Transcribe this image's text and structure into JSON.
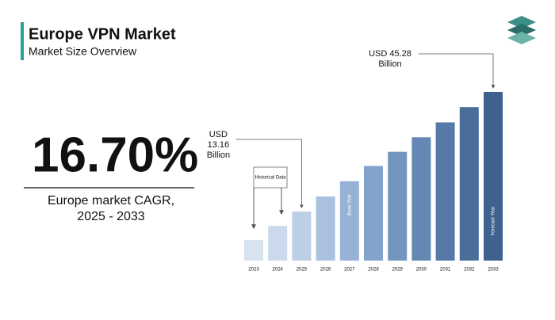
{
  "chart_data": {
    "type": "bar",
    "title": "Europe VPN Market",
    "subtitle": "Market Size Overview",
    "cagr": "16.70%",
    "cagr_label": [
      "Europe market CAGR,",
      "2025 - 2033"
    ],
    "categories": [
      "2023",
      "2024",
      "2025",
      "2026",
      "2027",
      "2028",
      "2029",
      "2030",
      "2031",
      "2032",
      "2033"
    ],
    "values": [
      5.5,
      9.3,
      13.16,
      17.2,
      21.3,
      25.4,
      29.2,
      33.1,
      37.1,
      41.2,
      45.28
    ],
    "value_labels": [
      null,
      null,
      "USD 13.16 Billion",
      null,
      null,
      null,
      null,
      null,
      null,
      null,
      "USD 45.28 Billion"
    ],
    "colors": [
      "#d7e3f1",
      "#cad9ec",
      "#bccfe7",
      "#a9c1df",
      "#96b2d6",
      "#83a3cb",
      "#7395c0",
      "#6487b4",
      "#5679a7",
      "#4a6d9a",
      "#3e618d"
    ],
    "annotations": {
      "historical": "Historical Data",
      "base_year": "Base Year",
      "forecast_year": "Forecast Year"
    }
  }
}
